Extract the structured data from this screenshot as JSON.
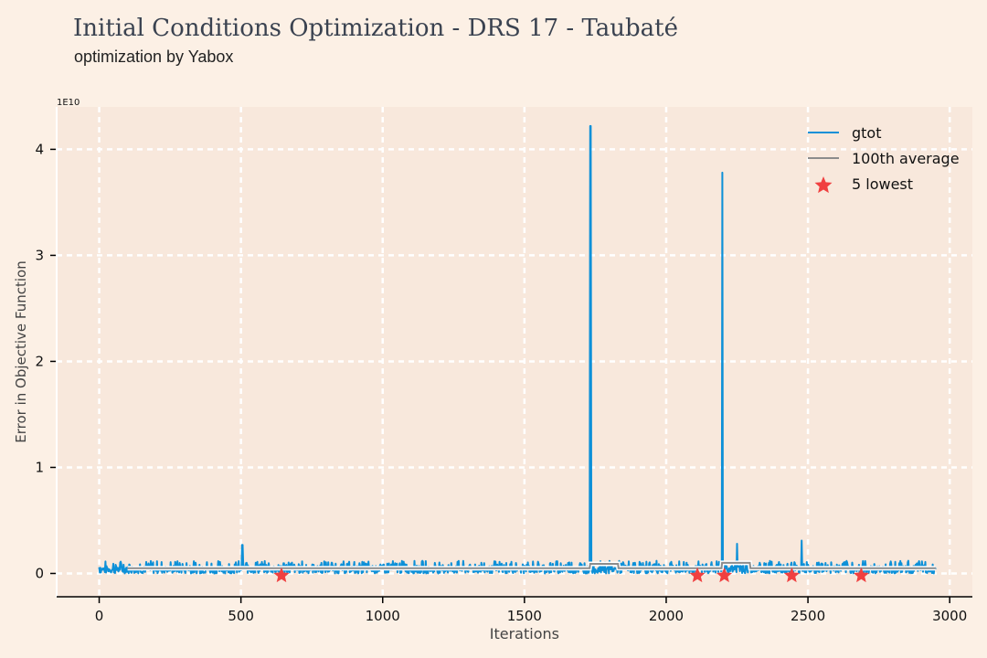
{
  "page": {
    "title": "Initial Conditions Optimization - DRS 17 - Taubaté",
    "subtitle": "optimization by Yabox"
  },
  "chart_data": {
    "type": "line",
    "xlabel": "Iterations",
    "ylabel": "Error in Objective Function",
    "y_scale_label": "1E10",
    "xlim": [
      -150,
      3080
    ],
    "ylim": [
      -0.22,
      4.4
    ],
    "x_ticks": [
      0,
      500,
      1000,
      1500,
      2000,
      2500,
      3000
    ],
    "y_ticks": [
      0,
      1,
      2,
      3,
      4
    ],
    "grid": true,
    "legend_position": "top-right",
    "colors": {
      "background": "#fcf0e5",
      "plot_area": "#f8e8dc",
      "gtot": "#0d90d8",
      "average": "#8c8c8c",
      "lowest": "#f04040",
      "grid": "#ffffff"
    },
    "series": [
      {
        "name": "gtot",
        "style": "line",
        "x_range": [
          0,
          2950
        ],
        "baseline_band": [
          0.0,
          0.12
        ],
        "spikes": [
          {
            "x": 505,
            "y": 0.27
          },
          {
            "x": 1733,
            "y": 4.22
          },
          {
            "x": 2198,
            "y": 3.78
          },
          {
            "x": 2250,
            "y": 0.28
          },
          {
            "x": 2478,
            "y": 0.31
          }
        ]
      },
      {
        "name": "100th average",
        "style": "line",
        "points": [
          [
            100,
            0.05
          ],
          [
            1730,
            0.05
          ],
          [
            1732,
            0.09
          ],
          [
            1830,
            0.09
          ],
          [
            1832,
            0.05
          ],
          [
            2195,
            0.05
          ],
          [
            2197,
            0.1
          ],
          [
            2295,
            0.1
          ],
          [
            2297,
            0.05
          ],
          [
            2950,
            0.05
          ]
        ]
      },
      {
        "name": "5 lowest",
        "style": "markers",
        "points": [
          [
            643,
            -0.02
          ],
          [
            2110,
            -0.02
          ],
          [
            2205,
            -0.02
          ],
          [
            2443,
            -0.02
          ],
          [
            2688,
            -0.02
          ]
        ]
      }
    ]
  }
}
